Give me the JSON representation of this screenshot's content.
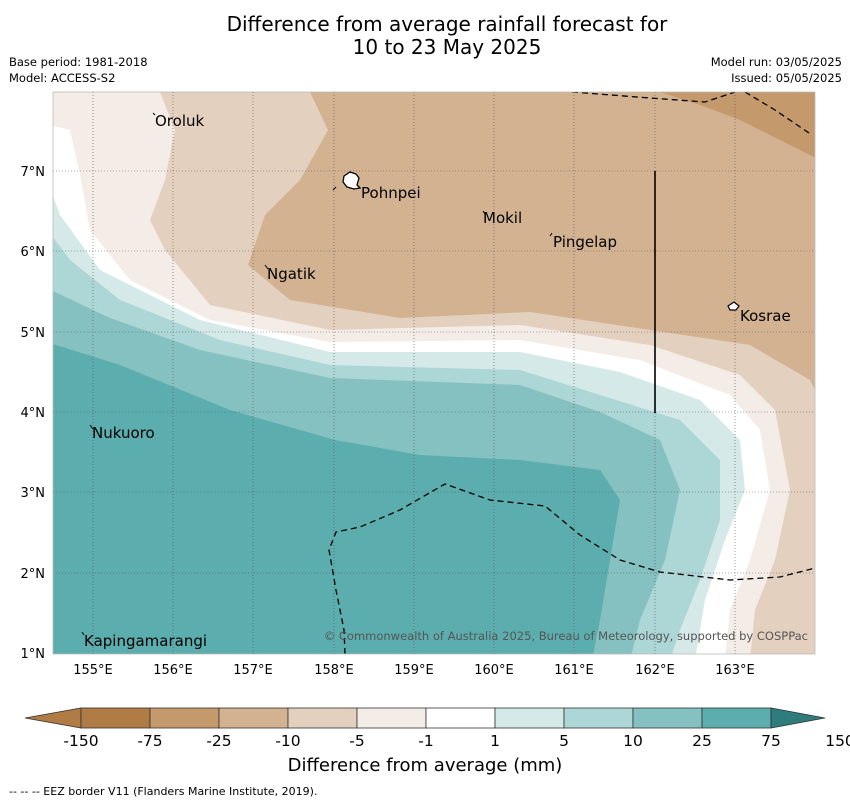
{
  "title_line1": "Difference from average rainfall forecast for",
  "title_line2": "10 to 23 May 2025",
  "base_period": "Base period: 1981-2018",
  "model": "Model: ACCESS-S2",
  "model_run": "Model run: 03/05/2025",
  "issued": "Issued: 05/05/2025",
  "copyright": "© Commonwealth of Australia 2025, Bureau of Meteorology, supported by COSPPac",
  "lon_labels": [
    "155°E",
    "156°E",
    "157°E",
    "158°E",
    "159°E",
    "160°E",
    "161°E",
    "162°E",
    "163°E"
  ],
  "lat_labels": [
    "7°N",
    "6°N",
    "5°N",
    "4°N",
    "3°N",
    "2°N",
    "1°N"
  ],
  "places": [
    "Oroluk",
    "Pohnpei",
    "Mokil",
    "Pingelap",
    "Ngatik",
    "Kosrae",
    "Nukuoro",
    "Kapingamarangi"
  ],
  "colorbar": {
    "title": "Difference from average (mm)",
    "ticks": [
      "-150",
      "-75",
      "-25",
      "-10",
      "-5",
      "-1",
      "1",
      "5",
      "10",
      "25",
      "75",
      "150"
    ],
    "colors": [
      "#b07b45",
      "#c49a6c",
      "#d3b291",
      "#e4d0bf",
      "#f4ece6",
      "#ffffff",
      "#d5e9e9",
      "#add6d6",
      "#85c1c1",
      "#5cadad",
      "#349999",
      "#2f7c7c"
    ]
  },
  "footnote": "--  --  -- EEZ border V11 (Flanders Marine Institute, 2019).",
  "icons": [
    "island-outline-icon"
  ]
}
